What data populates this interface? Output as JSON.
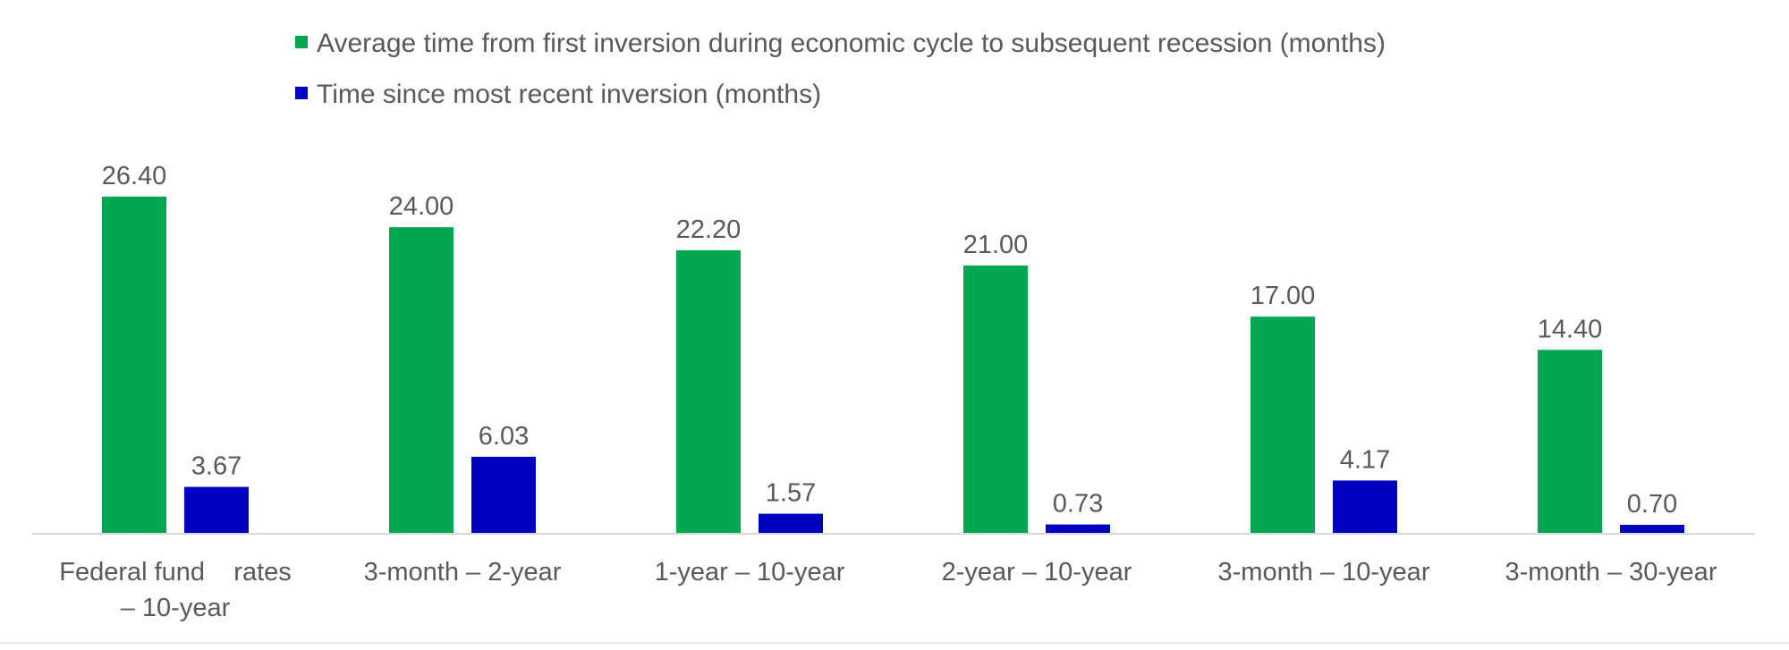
{
  "chart_data": {
    "type": "bar",
    "title": "",
    "xlabel": "",
    "ylabel": "",
    "categories": [
      [
        "Federal fund    rates",
        "– 10-year"
      ],
      [
        "3-month – 2-year"
      ],
      [
        "1-year – 10-year"
      ],
      [
        "2-year – 10-year"
      ],
      [
        "3-month – 10-year"
      ],
      [
        "3-month – 30-year"
      ]
    ],
    "series": [
      {
        "name": "Average time from first inversion during economic cycle to subsequent recession (months)",
        "color": "#00A651",
        "values": [
          26.4,
          24.0,
          22.2,
          21.0,
          17.0,
          14.4
        ],
        "labels": [
          "26.40",
          "24.00",
          "22.20",
          "21.00",
          "17.00",
          "14.40"
        ]
      },
      {
        "name": "Time since most recent inversion (months)",
        "color": "#0000C0",
        "values": [
          3.67,
          6.03,
          1.57,
          0.73,
          4.17,
          0.7
        ],
        "labels": [
          "3.67",
          "6.03",
          "1.57",
          "0.73",
          "4.17",
          "0.70"
        ]
      }
    ],
    "ylim": [
      0,
      30
    ],
    "grid": false,
    "legend_position": "top"
  }
}
